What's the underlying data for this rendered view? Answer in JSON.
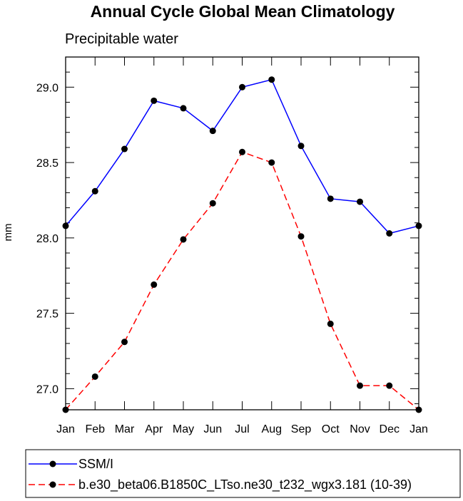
{
  "chart_data": {
    "type": "line",
    "title": "Annual Cycle Global Mean Climatology",
    "subtitle": "Precipitable water",
    "xlabel": "",
    "ylabel": "mm",
    "categories": [
      "Jan",
      "Feb",
      "Mar",
      "Apr",
      "May",
      "Jun",
      "Jul",
      "Aug",
      "Sep",
      "Oct",
      "Nov",
      "Dec",
      "Jan"
    ],
    "ylim": [
      26.86,
      29.2
    ],
    "yticks": [
      27.0,
      27.5,
      28.0,
      28.5,
      29.0
    ],
    "ytick_labels": [
      "27.0",
      "27.5",
      "28.0",
      "28.5",
      "29.0"
    ],
    "grid": false,
    "legend_position": "bottom",
    "series": [
      {
        "name": "SSM/I",
        "color": "#0000ff",
        "dash": "solid",
        "marker": "circle",
        "values": [
          28.08,
          28.31,
          28.59,
          28.91,
          28.86,
          28.71,
          29.0,
          29.05,
          28.61,
          28.26,
          28.24,
          28.03,
          28.08
        ]
      },
      {
        "name": "b.e30_beta06.B1850C_LTso.ne30_t232_wgx3.181 (10-39)",
        "color": "#ff0000",
        "dash": "dashed",
        "marker": "circle",
        "values": [
          26.86,
          27.08,
          27.31,
          27.69,
          27.99,
          28.23,
          28.57,
          28.5,
          28.01,
          27.43,
          27.02,
          27.02,
          26.86
        ]
      }
    ]
  }
}
